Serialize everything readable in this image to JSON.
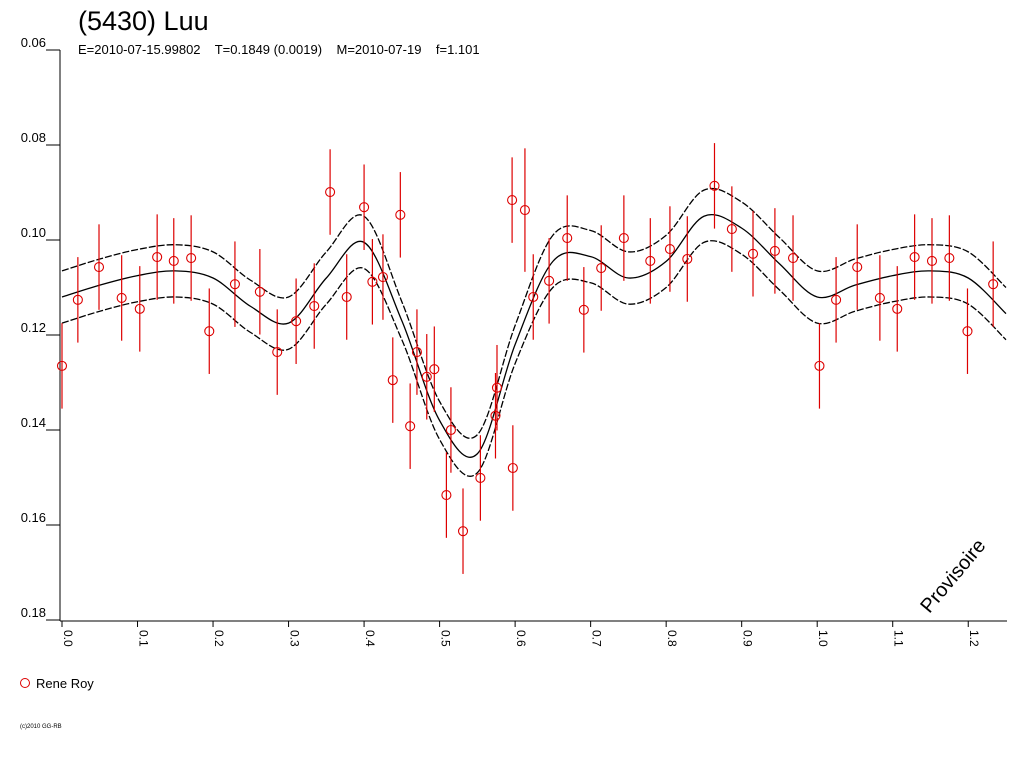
{
  "chart_data": {
    "type": "scatter",
    "title": "(5430) Luu",
    "subtitle": "E=2010-07-15.99802    T=0.1849 (0.0019)    M=2010-07-19    f=1.101",
    "watermark": "Provisoire",
    "footer": "(c)2010 GG-RB",
    "xlim": [
      0,
      1.25
    ],
    "ylim": [
      0.06,
      0.18
    ],
    "y_inverted": true,
    "xticks": [
      {
        "value": 0,
        "label": "0.0"
      },
      0.1,
      0.2,
      0.3,
      0.4,
      0.5,
      0.6,
      0.7,
      0.8,
      0.9,
      {
        "value": 1,
        "label": "1.0"
      },
      1.1,
      1.2
    ],
    "yticks": [
      0.06,
      0.08,
      {
        "value": 0.1,
        "label": "0.10"
      },
      0.12,
      0.14,
      0.16,
      0.18
    ],
    "series": [
      {
        "name": "Rene Roy",
        "color": "#dd0000",
        "x": [
          0.0,
          0.021,
          0.049,
          0.079,
          0.103,
          0.126,
          0.148,
          0.171,
          0.195,
          0.229,
          0.262,
          0.285,
          0.31,
          0.334,
          0.355,
          0.377,
          0.4,
          0.411,
          0.425,
          0.438,
          0.448,
          0.461,
          0.47,
          0.483,
          0.493,
          0.509,
          0.515,
          0.531,
          0.554,
          0.576,
          0.574,
          0.597,
          0.596,
          0.613,
          0.624,
          0.645,
          0.669,
          0.691,
          0.714,
          0.744,
          0.779,
          0.805,
          0.828,
          0.864,
          0.887,
          0.915,
          0.944,
          0.968,
          1.003,
          1.025,
          1.053,
          1.083,
          1.106,
          1.129,
          1.152,
          1.175,
          1.199,
          1.233
        ],
        "values": [
          0.1265,
          0.1126,
          0.1057,
          0.1122,
          0.1145,
          0.1036,
          0.1044,
          0.1038,
          0.1192,
          0.1093,
          0.1109,
          0.1236,
          0.1171,
          0.1139,
          0.0899,
          0.112,
          0.0931,
          0.1088,
          0.1078,
          0.1295,
          0.0947,
          0.1392,
          0.1236,
          0.1288,
          0.1272,
          0.1537,
          0.14,
          0.1613,
          0.1501,
          0.1311,
          0.137,
          0.148,
          0.0916,
          0.0937,
          0.112,
          0.1086,
          0.0996,
          0.1147,
          0.1059,
          0.0996,
          0.1044,
          0.1019,
          0.104,
          0.0886,
          0.0977,
          0.1029,
          0.1023,
          0.1038,
          0.1265,
          0.1126,
          0.1057,
          0.1122,
          0.1145,
          0.1036,
          0.1044,
          0.1038,
          0.1192,
          0.1093
        ],
        "errors": [
          0.009,
          0.009,
          0.009,
          0.009,
          0.009,
          0.009,
          0.009,
          0.009,
          0.009,
          0.009,
          0.009,
          0.009,
          0.009,
          0.009,
          0.009,
          0.009,
          0.009,
          0.009,
          0.009,
          0.009,
          0.009,
          0.009,
          0.009,
          0.009,
          0.009,
          0.009,
          0.009,
          0.009,
          0.009,
          0.009,
          0.009,
          0.009,
          0.009,
          0.013,
          0.009,
          0.009,
          0.009,
          0.009,
          0.009,
          0.009,
          0.009,
          0.009,
          0.009,
          0.009,
          0.009,
          0.009,
          0.009,
          0.009,
          0.009,
          0.009,
          0.009,
          0.009,
          0.009,
          0.009,
          0.009,
          0.009,
          0.009,
          0.009
        ]
      }
    ],
    "fit_x": [
      0,
      0.05,
      0.1,
      0.15,
      0.2,
      0.25,
      0.3,
      0.35,
      0.4,
      0.45,
      0.5,
      0.55,
      0.6,
      0.65,
      0.7,
      0.75,
      0.8,
      0.85,
      0.9,
      0.95,
      1.0,
      1.05,
      1.1,
      1.15,
      1.2,
      1.25
    ],
    "fit_lines": [
      {
        "style": "solid",
        "color": "#000000",
        "values": [
          0.112,
          0.1095,
          0.1075,
          0.1065,
          0.108,
          0.114,
          0.1175,
          0.108,
          0.1005,
          0.117,
          0.138,
          0.145,
          0.122,
          0.1045,
          0.1035,
          0.108,
          0.1045,
          0.095,
          0.0975,
          0.105,
          0.112,
          0.1095,
          0.1075,
          0.1065,
          0.108,
          0.1155
        ]
      },
      {
        "style": "dashed",
        "color": "#000000",
        "values": [
          0.1065,
          0.104,
          0.102,
          0.101,
          0.1025,
          0.1085,
          0.112,
          0.1025,
          0.095,
          0.113,
          0.134,
          0.141,
          0.118,
          0.099,
          0.098,
          0.1025,
          0.099,
          0.0895,
          0.092,
          0.0995,
          0.1065,
          0.104,
          0.102,
          0.101,
          0.1025,
          0.11
        ]
      },
      {
        "style": "dashed",
        "color": "#000000",
        "values": [
          0.1175,
          0.115,
          0.113,
          0.112,
          0.1135,
          0.1195,
          0.123,
          0.1135,
          0.106,
          0.121,
          0.142,
          0.149,
          0.126,
          0.11,
          0.109,
          0.1135,
          0.11,
          0.1005,
          0.103,
          0.1105,
          0.1175,
          0.115,
          0.113,
          0.112,
          0.1135,
          0.121
        ]
      }
    ]
  }
}
